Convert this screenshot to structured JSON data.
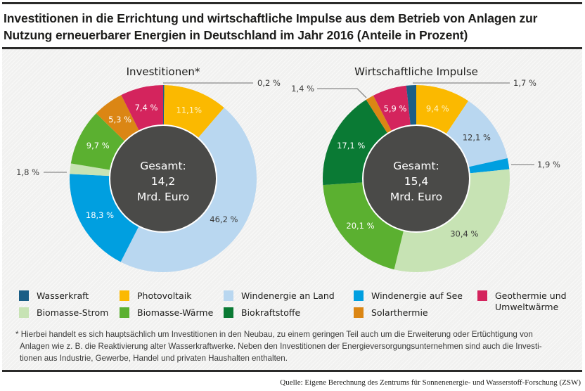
{
  "title": {
    "line1": "Investitionen in die Errichtung und wirtschaftliche Impulse aus dem Betrieb von Anlagen zur",
    "line2": "Nutzung erneuerbarer Energien in Deutschland im Jahr 2016 (Anteile in Prozent)"
  },
  "colors": {
    "Wasserkraft": "#1a5e86",
    "Photovoltaik": "#fbb900",
    "Windenergie an Land": "#b9d7f0",
    "Windenergie auf See": "#009fe0",
    "Geothermie und Umweltwärme": "#d4245d",
    "Biomasse-Strom": "#c7e3b4",
    "Biomasse-Wärme": "#5bb030",
    "Biokraftstoffe": "#0a7a34",
    "Solarthermie": "#db8614",
    "center": "#4a4a48"
  },
  "chart_data": [
    {
      "type": "pie",
      "title": "Investitionen*",
      "center_label": [
        "Gesamt:",
        "14,2",
        "Mrd. Euro"
      ],
      "total": 14.2,
      "unit": "Mrd. Euro",
      "slices": [
        {
          "name": "Wasserkraft",
          "value": 0.2,
          "label": "0,2 %"
        },
        {
          "name": "Photovoltaik",
          "value": 11.1,
          "label": "11,1%"
        },
        {
          "name": "Windenergie an Land",
          "value": 46.2,
          "label": "46,2 %"
        },
        {
          "name": "Windenergie auf See",
          "value": 18.3,
          "label": "18,3 %"
        },
        {
          "name": "Biomasse-Strom",
          "value": 1.8,
          "label": "1,8 %"
        },
        {
          "name": "Biomasse-Wärme",
          "value": 9.7,
          "label": "9,7 %"
        },
        {
          "name": "Solarthermie",
          "value": 5.3,
          "label": "5,3 %"
        },
        {
          "name": "Geothermie und Umweltwärme",
          "value": 7.4,
          "label": "7,4 %"
        }
      ]
    },
    {
      "type": "pie",
      "title": "Wirtschaftliche Impulse",
      "center_label": [
        "Gesamt:",
        "15,4",
        "Mrd. Euro"
      ],
      "total": 15.4,
      "unit": "Mrd. Euro",
      "slices": [
        {
          "name": "Photovoltaik",
          "value": 9.4,
          "label": "9,4 %"
        },
        {
          "name": "Windenergie an Land",
          "value": 12.1,
          "label": "12,1 %"
        },
        {
          "name": "Windenergie auf See",
          "value": 1.9,
          "label": "1,9 %"
        },
        {
          "name": "Biomasse-Strom",
          "value": 30.4,
          "label": "30,4 %"
        },
        {
          "name": "Biomasse-Wärme",
          "value": 20.1,
          "label": "20,1 %"
        },
        {
          "name": "Biokraftstoffe",
          "value": 17.1,
          "label": "17,1 %"
        },
        {
          "name": "Solarthermie",
          "value": 1.4,
          "label": "1,4 %"
        },
        {
          "name": "Geothermie und Umweltwärme",
          "value": 5.9,
          "label": "5,9 %"
        },
        {
          "name": "Wasserkraft",
          "value": 1.7,
          "label": "1,7 %"
        }
      ]
    }
  ],
  "legend": {
    "items": [
      {
        "key": "Wasserkraft",
        "lines": [
          "Wasserkraft"
        ]
      },
      {
        "key": "Photovoltaik",
        "lines": [
          "Photovoltaik"
        ]
      },
      {
        "key": "Windenergie an Land",
        "lines": [
          "Windenergie an Land"
        ]
      },
      {
        "key": "Windenergie auf See",
        "lines": [
          "Windenergie auf See"
        ]
      },
      {
        "key": "Geothermie und Umweltwärme",
        "lines": [
          "Geothermie und",
          "Umweltwärme"
        ]
      },
      {
        "key": "Biomasse-Strom",
        "lines": [
          "Biomasse-Strom"
        ]
      },
      {
        "key": "Biomasse-Wärme",
        "lines": [
          "Biomasse-Wärme"
        ]
      },
      {
        "key": "Biokraftstoffe",
        "lines": [
          "Biokraftstoffe"
        ]
      },
      {
        "key": "Solarthermie",
        "lines": [
          "Solarthermie"
        ]
      }
    ]
  },
  "footnote": {
    "line1": "* Hierbei handelt es sich hauptsächlich um Investitionen in den Neubau, zu einem geringen Teil auch um die Erweiterung oder Ertüchtigung von",
    "line2": "Anlagen wie z. B. die Reaktivierung alter Wasserkraftwerke. Neben den Investitionen der Energieversorgungsunternehmen sind auch die Investi-",
    "line3": "tionen aus Industrie, Gewerbe, Handel und privaten Haushalten enthalten."
  },
  "source": "Quelle: Eigene Berechnung des Zentrums für Sonnenenergie- und Wasserstoff-Forschung (ZSW)"
}
